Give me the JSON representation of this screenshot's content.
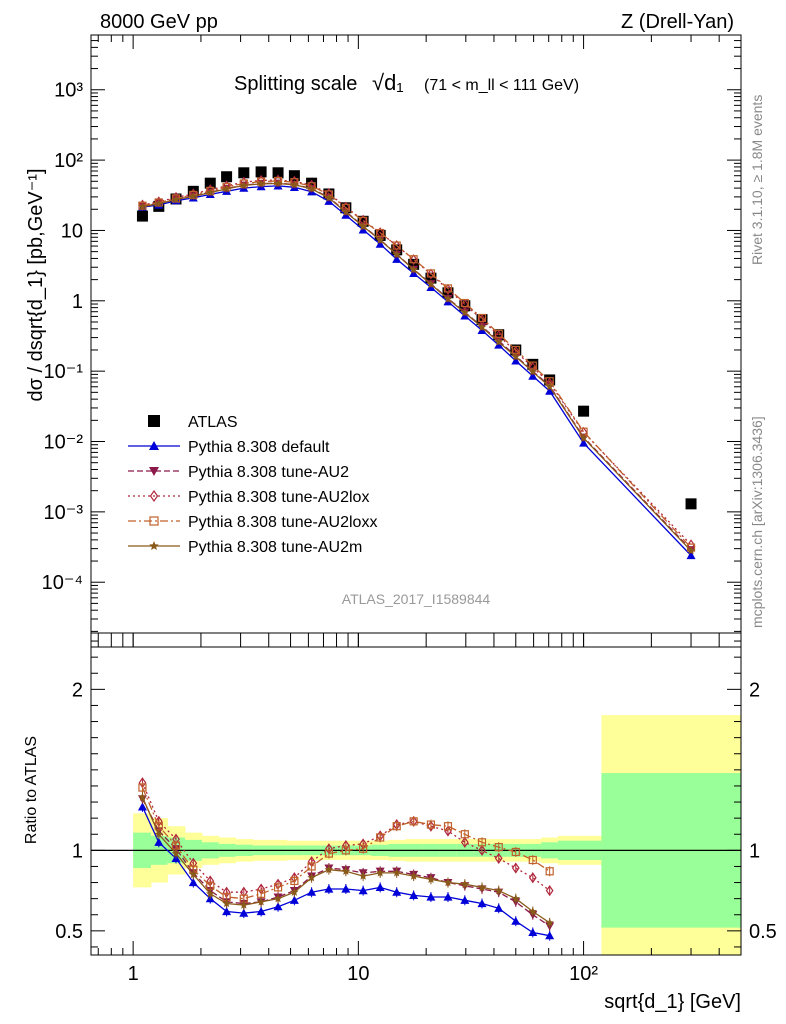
{
  "header": {
    "energy": "8000 GeV pp",
    "process": "Z (Drell-Yan)"
  },
  "side_labels": {
    "rivet": "Rivet 3.1.10, ≥ 1.8M events",
    "mcplots": "mcplots.cern.ch [arXiv:1306.3436]"
  },
  "analysis_id": "ATLAS_2017_I1589844",
  "chart_data": [
    {
      "type": "scatter",
      "panel": "main",
      "title": "Splitting scale",
      "title_formula": "√d₁",
      "title_cut": "(71 < m_ll < 111 GeV)",
      "ylabel": "dσ / dsqrt{d_1} [pb,GeV⁻¹]",
      "xlabel": "",
      "xscale": "log",
      "yscale": "log",
      "xlim": [
        0.65,
        500
      ],
      "ylim": [
        1.2e-05,
        6000
      ],
      "y_tick_labels": [
        "10⁻⁴",
        "10⁻³",
        "10⁻²",
        "10⁻¹",
        "1",
        "10",
        "10²",
        "10³"
      ],
      "legend_position": "bottom-left",
      "x": [
        1.1,
        1.3,
        1.55,
        1.85,
        2.2,
        2.6,
        3.1,
        3.7,
        4.4,
        5.2,
        6.2,
        7.4,
        8.8,
        10.5,
        12.5,
        14.8,
        17.6,
        21,
        25,
        29.7,
        35.4,
        42,
        50,
        59.5,
        70.7,
        100,
        300
      ],
      "series": [
        {
          "name": "ATLAS",
          "marker": "square",
          "color": "#000000",
          "values": [
            16,
            22,
            28,
            36,
            47,
            58,
            66,
            68,
            66,
            60,
            47,
            33,
            21,
            13.5,
            8.5,
            5.3,
            3.3,
            2.1,
            1.3,
            0.85,
            0.54,
            0.33,
            0.2,
            0.125,
            0.075,
            0.027,
            0.0013
          ]
        },
        {
          "name": "Pythia 8.308 default",
          "marker": "triangle-up",
          "line": "solid",
          "color": "#0000d8",
          "values": [
            21.5,
            23,
            26.5,
            29,
            32.5,
            36,
            40,
            42,
            43,
            41,
            35.5,
            26,
            16.5,
            10.2,
            6.4,
            3.9,
            2.45,
            1.55,
            0.97,
            0.61,
            0.38,
            0.235,
            0.14,
            0.085,
            0.052,
            0.0095,
            0.00024
          ]
        },
        {
          "name": "Pythia 8.308 tune-AU2",
          "marker": "triangle-down",
          "line": "dashed",
          "color": "#8b1a4a",
          "values": [
            22,
            24.5,
            28,
            31,
            35,
            39.5,
            44,
            46.5,
            47,
            45,
            39.5,
            29.5,
            18.5,
            11.6,
            7.4,
            4.6,
            2.8,
            1.75,
            1.08,
            0.69,
            0.43,
            0.27,
            0.165,
            0.1,
            0.062,
            0.0115,
            0.00029
          ]
        },
        {
          "name": "Pythia 8.308 tune-AU2lox",
          "marker": "diamond-open",
          "line": "dotted",
          "color": "#b0263c",
          "values": [
            23,
            25.5,
            29.5,
            33,
            38,
            43,
            48.5,
            51.5,
            52,
            50,
            44,
            33.5,
            21.5,
            14,
            9.3,
            6.1,
            3.85,
            2.4,
            1.45,
            0.89,
            0.54,
            0.32,
            0.19,
            0.113,
            0.068,
            0.0135,
            0.00034
          ]
        },
        {
          "name": "Pythia 8.308 tune-AU2loxx",
          "marker": "square-open",
          "line": "dashdot",
          "color": "#c0602a",
          "values": [
            22.5,
            25,
            28.5,
            32,
            36.5,
            41.5,
            46.5,
            49.5,
            50.5,
            48.5,
            42.5,
            32.5,
            21,
            13.7,
            9.2,
            6.1,
            3.9,
            2.45,
            1.5,
            0.93,
            0.57,
            0.34,
            0.2,
            0.12,
            0.072,
            0.0138,
            0.00031
          ]
        },
        {
          "name": "Pythia 8.308 tune-AU2m",
          "marker": "star",
          "line": "solid",
          "color": "#8a5a1a",
          "values": [
            21.8,
            24,
            27.5,
            30.5,
            34.5,
            39,
            43.5,
            46,
            46.5,
            44.5,
            39,
            29,
            18.2,
            11.4,
            7.3,
            4.55,
            2.78,
            1.72,
            1.06,
            0.68,
            0.42,
            0.26,
            0.16,
            0.098,
            0.06,
            0.0112,
            0.00028
          ]
        }
      ]
    },
    {
      "type": "scatter",
      "panel": "ratio",
      "ylabel": "Ratio to ATLAS",
      "xlabel": "sqrt{d_1} [GeV]",
      "xscale": "log",
      "xlim": [
        0.65,
        500
      ],
      "ylim": [
        0.35,
        2.35
      ],
      "reference_line": 1,
      "x_tick_labels": [
        "1",
        "10",
        "10²"
      ],
      "y_tick_labels": [
        "0.5",
        "1",
        "2"
      ],
      "bin_edges": [
        1,
        1.2,
        1.42,
        1.7,
        2.02,
        2.4,
        2.85,
        3.4,
        4.05,
        4.8,
        5.7,
        6.8,
        8.1,
        9.6,
        11.4,
        13.6,
        16.2,
        19.2,
        22.9,
        27.2,
        32.4,
        38.5,
        45.8,
        54.5,
        64.8,
        77,
        120,
        500
      ],
      "band_stat_halfwidth": [
        0.11,
        0.09,
        0.08,
        0.065,
        0.05,
        0.04,
        0.035,
        0.03,
        0.03,
        0.03,
        0.03,
        0.03,
        0.03,
        0.03,
        0.035,
        0.04,
        0.04,
        0.04,
        0.04,
        0.04,
        0.04,
        0.04,
        0.04,
        0.04,
        0.05,
        0.06,
        0.48
      ],
      "band_total_halfwidth": [
        0.23,
        0.2,
        0.15,
        0.11,
        0.09,
        0.08,
        0.07,
        0.065,
        0.065,
        0.06,
        0.06,
        0.06,
        0.06,
        0.06,
        0.06,
        0.065,
        0.07,
        0.07,
        0.07,
        0.07,
        0.07,
        0.07,
        0.07,
        0.07,
        0.08,
        0.09,
        0.84
      ],
      "band_colors": {
        "stat": "#99ff99",
        "total": "#ffff99"
      },
      "x": [
        1.1,
        1.3,
        1.55,
        1.85,
        2.2,
        2.6,
        3.1,
        3.7,
        4.4,
        5.2,
        6.2,
        7.4,
        8.8,
        10.5,
        12.5,
        14.8,
        17.6,
        21,
        25,
        29.7,
        35.4,
        42,
        50,
        59.5,
        70.7
      ],
      "series": [
        {
          "name": "Pythia 8.308 default",
          "color": "#0000d8",
          "values": [
            1.27,
            1.05,
            0.95,
            0.8,
            0.7,
            0.62,
            0.61,
            0.62,
            0.65,
            0.69,
            0.74,
            0.76,
            0.76,
            0.75,
            0.77,
            0.74,
            0.72,
            0.71,
            0.71,
            0.69,
            0.67,
            0.64,
            0.56,
            0.49,
            0.47
          ]
        },
        {
          "name": "Pythia 8.308 tune-AU2",
          "color": "#8b1a4a",
          "values": [
            1.32,
            1.12,
            1.01,
            0.86,
            0.75,
            0.68,
            0.67,
            0.68,
            0.71,
            0.75,
            0.84,
            0.89,
            0.88,
            0.86,
            0.87,
            0.87,
            0.85,
            0.83,
            0.8,
            0.78,
            0.76,
            0.74,
            0.68,
            0.6,
            0.53
          ]
        },
        {
          "name": "Pythia 8.308 tune-AU2lox",
          "color": "#b0263c",
          "values": [
            1.42,
            1.18,
            1.07,
            0.92,
            0.81,
            0.74,
            0.74,
            0.76,
            0.79,
            0.83,
            0.93,
            1.01,
            1.03,
            1.04,
            1.09,
            1.16,
            1.18,
            1.15,
            1.12,
            1.05,
            1.0,
            0.95,
            0.89,
            0.83,
            0.75
          ]
        },
        {
          "name": "Pythia 8.308 tune-AU2loxx",
          "color": "#c0602a",
          "values": [
            1.39,
            1.15,
            1.03,
            0.88,
            0.78,
            0.71,
            0.7,
            0.73,
            0.77,
            0.81,
            0.9,
            0.98,
            1.0,
            1.01,
            1.08,
            1.15,
            1.18,
            1.16,
            1.15,
            1.1,
            1.05,
            1.02,
            0.99,
            0.94,
            0.87
          ]
        },
        {
          "name": "Pythia 8.308 tune-AU2m",
          "color": "#8a5a1a",
          "values": [
            1.33,
            1.1,
            0.98,
            0.85,
            0.73,
            0.67,
            0.66,
            0.68,
            0.7,
            0.74,
            0.83,
            0.88,
            0.87,
            0.84,
            0.86,
            0.86,
            0.84,
            0.82,
            0.8,
            0.79,
            0.77,
            0.75,
            0.7,
            0.62,
            0.55
          ]
        }
      ]
    }
  ]
}
